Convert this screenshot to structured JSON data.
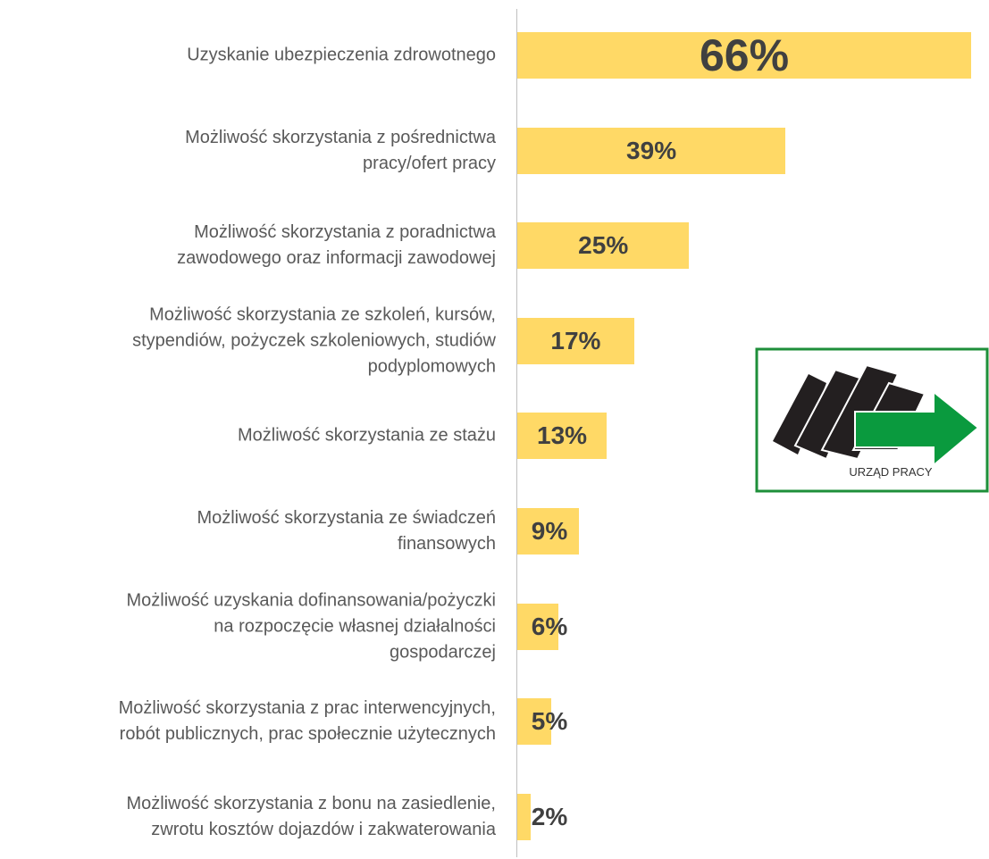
{
  "chart_data": {
    "type": "bar",
    "orientation": "horizontal",
    "categories": [
      "Uzyskanie ubezpieczenia zdrowotnego",
      "Możliwość  skorzystania z pośrednictwa\npracy/ofert pracy",
      "Możliwość skorzystania z poradnictwa\nzawodowego oraz informacji zawodowej",
      "Możliwość skorzystania ze szkoleń, kursów,\nstypendiów, pożyczek szkoleniowych, studiów\npodyplomowych",
      "Możliwość skorzystania ze stażu",
      "Możliwość skorzystania ze świadczeń\nfinansowych",
      "Możliwość uzyskania dofinansowania/pożyczki\nna rozpoczęcie własnej działalności\ngospodarczej",
      "Możliwość skorzystania z prac interwencyjnych,\nrobót publicznych, prac społecznie użytecznych",
      "Możliwość skorzystania z bonu na zasiedlenie,\nzwrotu kosztów dojazdów i zakwaterowania"
    ],
    "values": [
      66,
      39,
      25,
      17,
      13,
      9,
      6,
      5,
      2
    ],
    "value_labels": [
      "66%",
      "39%",
      "25%",
      "17%",
      "13%",
      "9%",
      "6%",
      "5%",
      "2%"
    ],
    "color": "#ffd966",
    "annotation": "URZĄD PRACY"
  }
}
